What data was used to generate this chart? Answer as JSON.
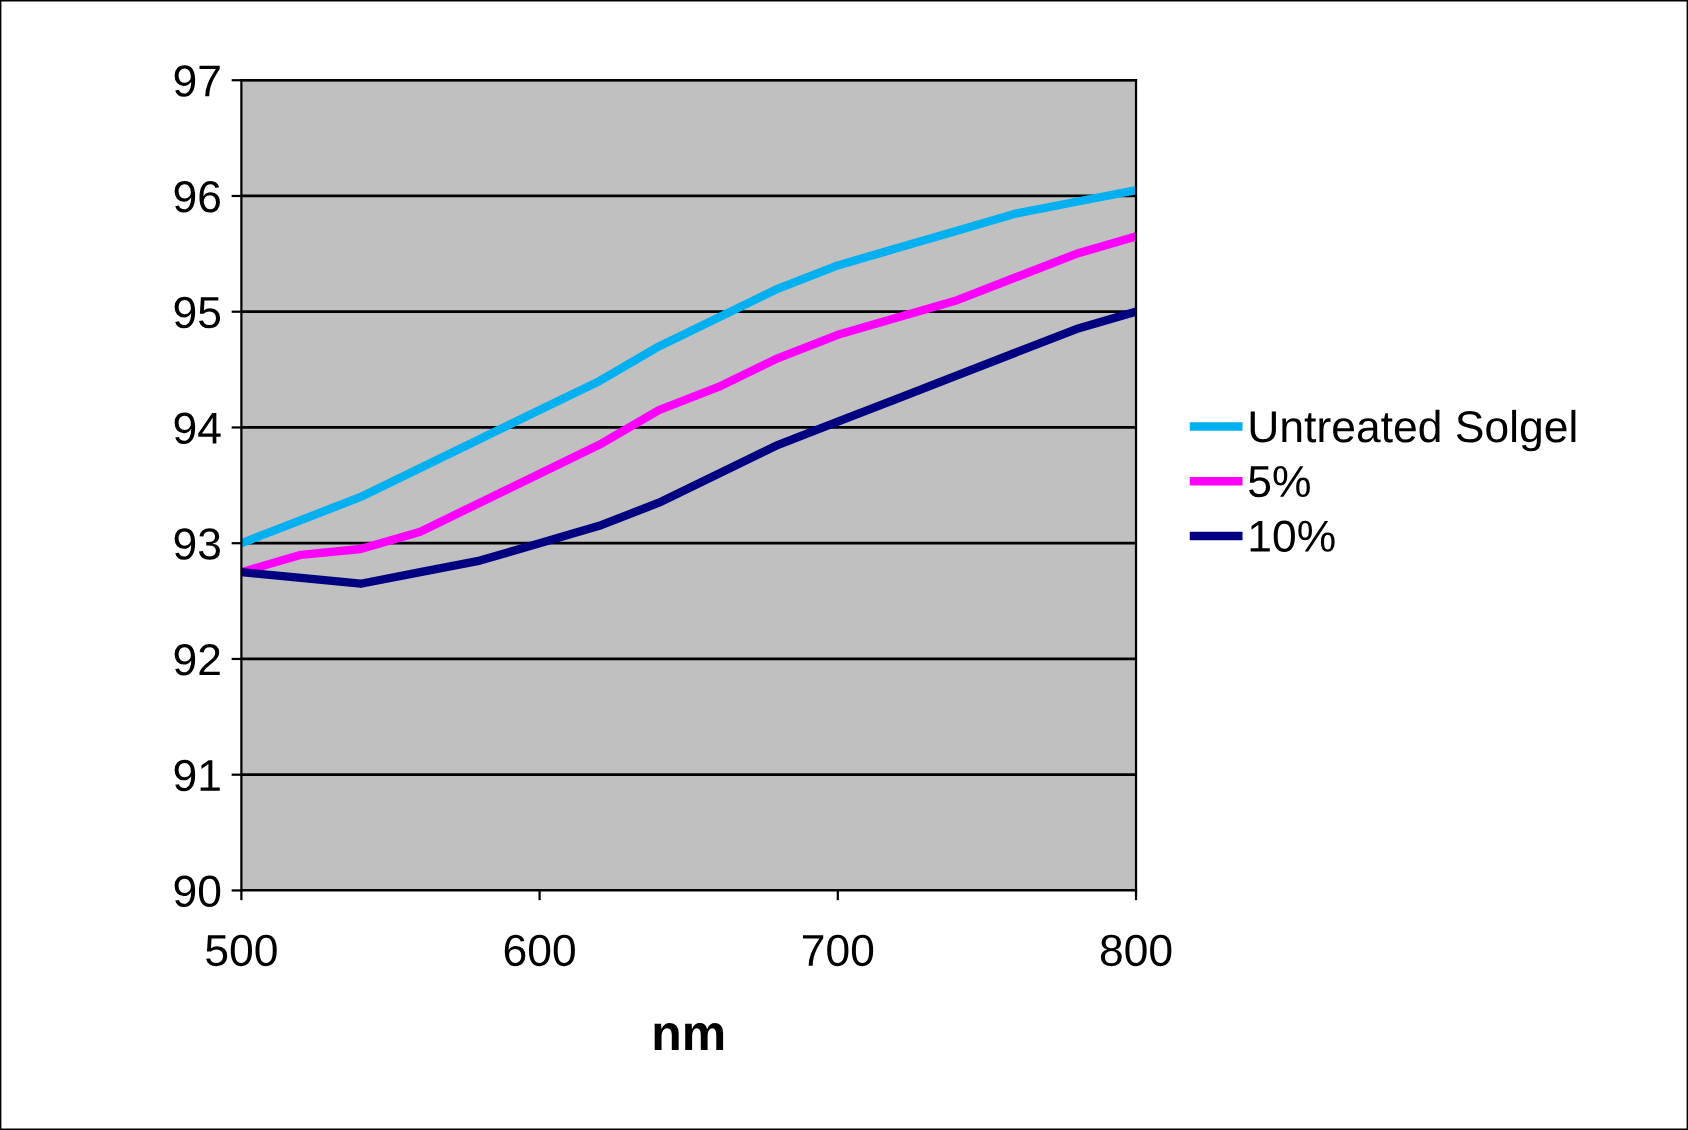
{
  "chart_data": {
    "type": "line",
    "xlabel": "nm",
    "x": [
      500,
      520,
      540,
      560,
      580,
      600,
      620,
      640,
      660,
      680,
      700,
      720,
      740,
      760,
      780,
      800
    ],
    "series": [
      {
        "name": "Untreated Solgel",
        "color": "#00b0f0",
        "values": [
          93.0,
          93.2,
          93.4,
          93.65,
          93.9,
          94.15,
          94.4,
          94.7,
          94.95,
          95.2,
          95.4,
          95.55,
          95.7,
          95.85,
          95.95,
          96.05
        ]
      },
      {
        "name": "5%",
        "color": "#ff00ff",
        "values": [
          92.75,
          92.9,
          92.95,
          93.1,
          93.35,
          93.6,
          93.85,
          94.15,
          94.35,
          94.6,
          94.8,
          94.95,
          95.1,
          95.3,
          95.5,
          95.65
        ]
      },
      {
        "name": "10%",
        "color": "#000080",
        "values": [
          92.75,
          92.7,
          92.65,
          92.75,
          92.85,
          93.0,
          93.15,
          93.35,
          93.6,
          93.85,
          94.05,
          94.25,
          94.45,
          94.65,
          94.85,
          95.0
        ]
      }
    ],
    "xlim": [
      500,
      800
    ],
    "xticks": [
      500,
      600,
      700,
      800
    ],
    "ylim": [
      90,
      97
    ],
    "yticks": [
      90,
      91,
      92,
      93,
      94,
      95,
      96,
      97
    ],
    "grid": "y",
    "legend": "right",
    "marker": "none",
    "line_style": "solid"
  }
}
